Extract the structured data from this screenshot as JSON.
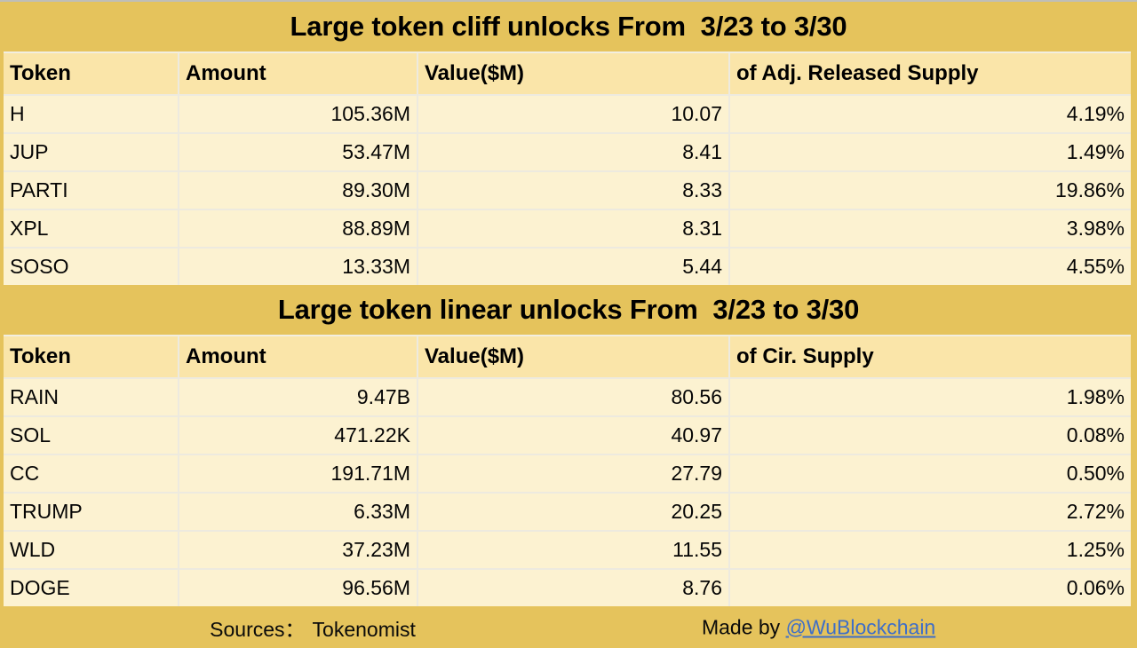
{
  "colors": {
    "gold_band": "#e5c35c",
    "header_row_bg": "#fae5a9",
    "data_row_bg": "#fcf2d1",
    "separator": "#edeadf",
    "link_blue": "#3e6ec8",
    "text": "#050505"
  },
  "chart_data": [
    {
      "type": "table",
      "title": "Large token cliff unlocks From  3/23 to 3/30",
      "columns": [
        "Token",
        "Amount",
        "Value($M)",
        "of Adj. Released Supply"
      ],
      "rows": [
        [
          "H",
          "105.36M",
          "10.07",
          "4.19%"
        ],
        [
          "JUP",
          "53.47M",
          "8.41",
          "1.49%"
        ],
        [
          "PARTI",
          "89.30M",
          "8.33",
          "19.86%"
        ],
        [
          "XPL",
          "88.89M",
          "8.31",
          "3.98%"
        ],
        [
          "SOSO",
          "13.33M",
          "5.44",
          "4.55%"
        ]
      ]
    },
    {
      "type": "table",
      "title": "Large token linear unlocks From  3/23 to 3/30",
      "columns": [
        "Token",
        "Amount",
        "Value($M)",
        "of Cir. Supply"
      ],
      "rows": [
        [
          "RAIN",
          "9.47B",
          "80.56",
          "1.98%"
        ],
        [
          "SOL",
          "471.22K",
          "40.97",
          "0.08%"
        ],
        [
          "CC",
          "191.71M",
          "27.79",
          "0.50%"
        ],
        [
          "TRUMP",
          "6.33M",
          "20.25",
          "2.72%"
        ],
        [
          "WLD",
          "37.23M",
          "11.55",
          "1.25%"
        ],
        [
          "DOGE",
          "96.56M",
          "8.76",
          "0.06%"
        ]
      ]
    }
  ],
  "footer": {
    "sources_label": "Sources：",
    "sources_value": "Tokenomist",
    "made_by_label": "Made by ",
    "made_by_link": "@WuBlockchain"
  }
}
